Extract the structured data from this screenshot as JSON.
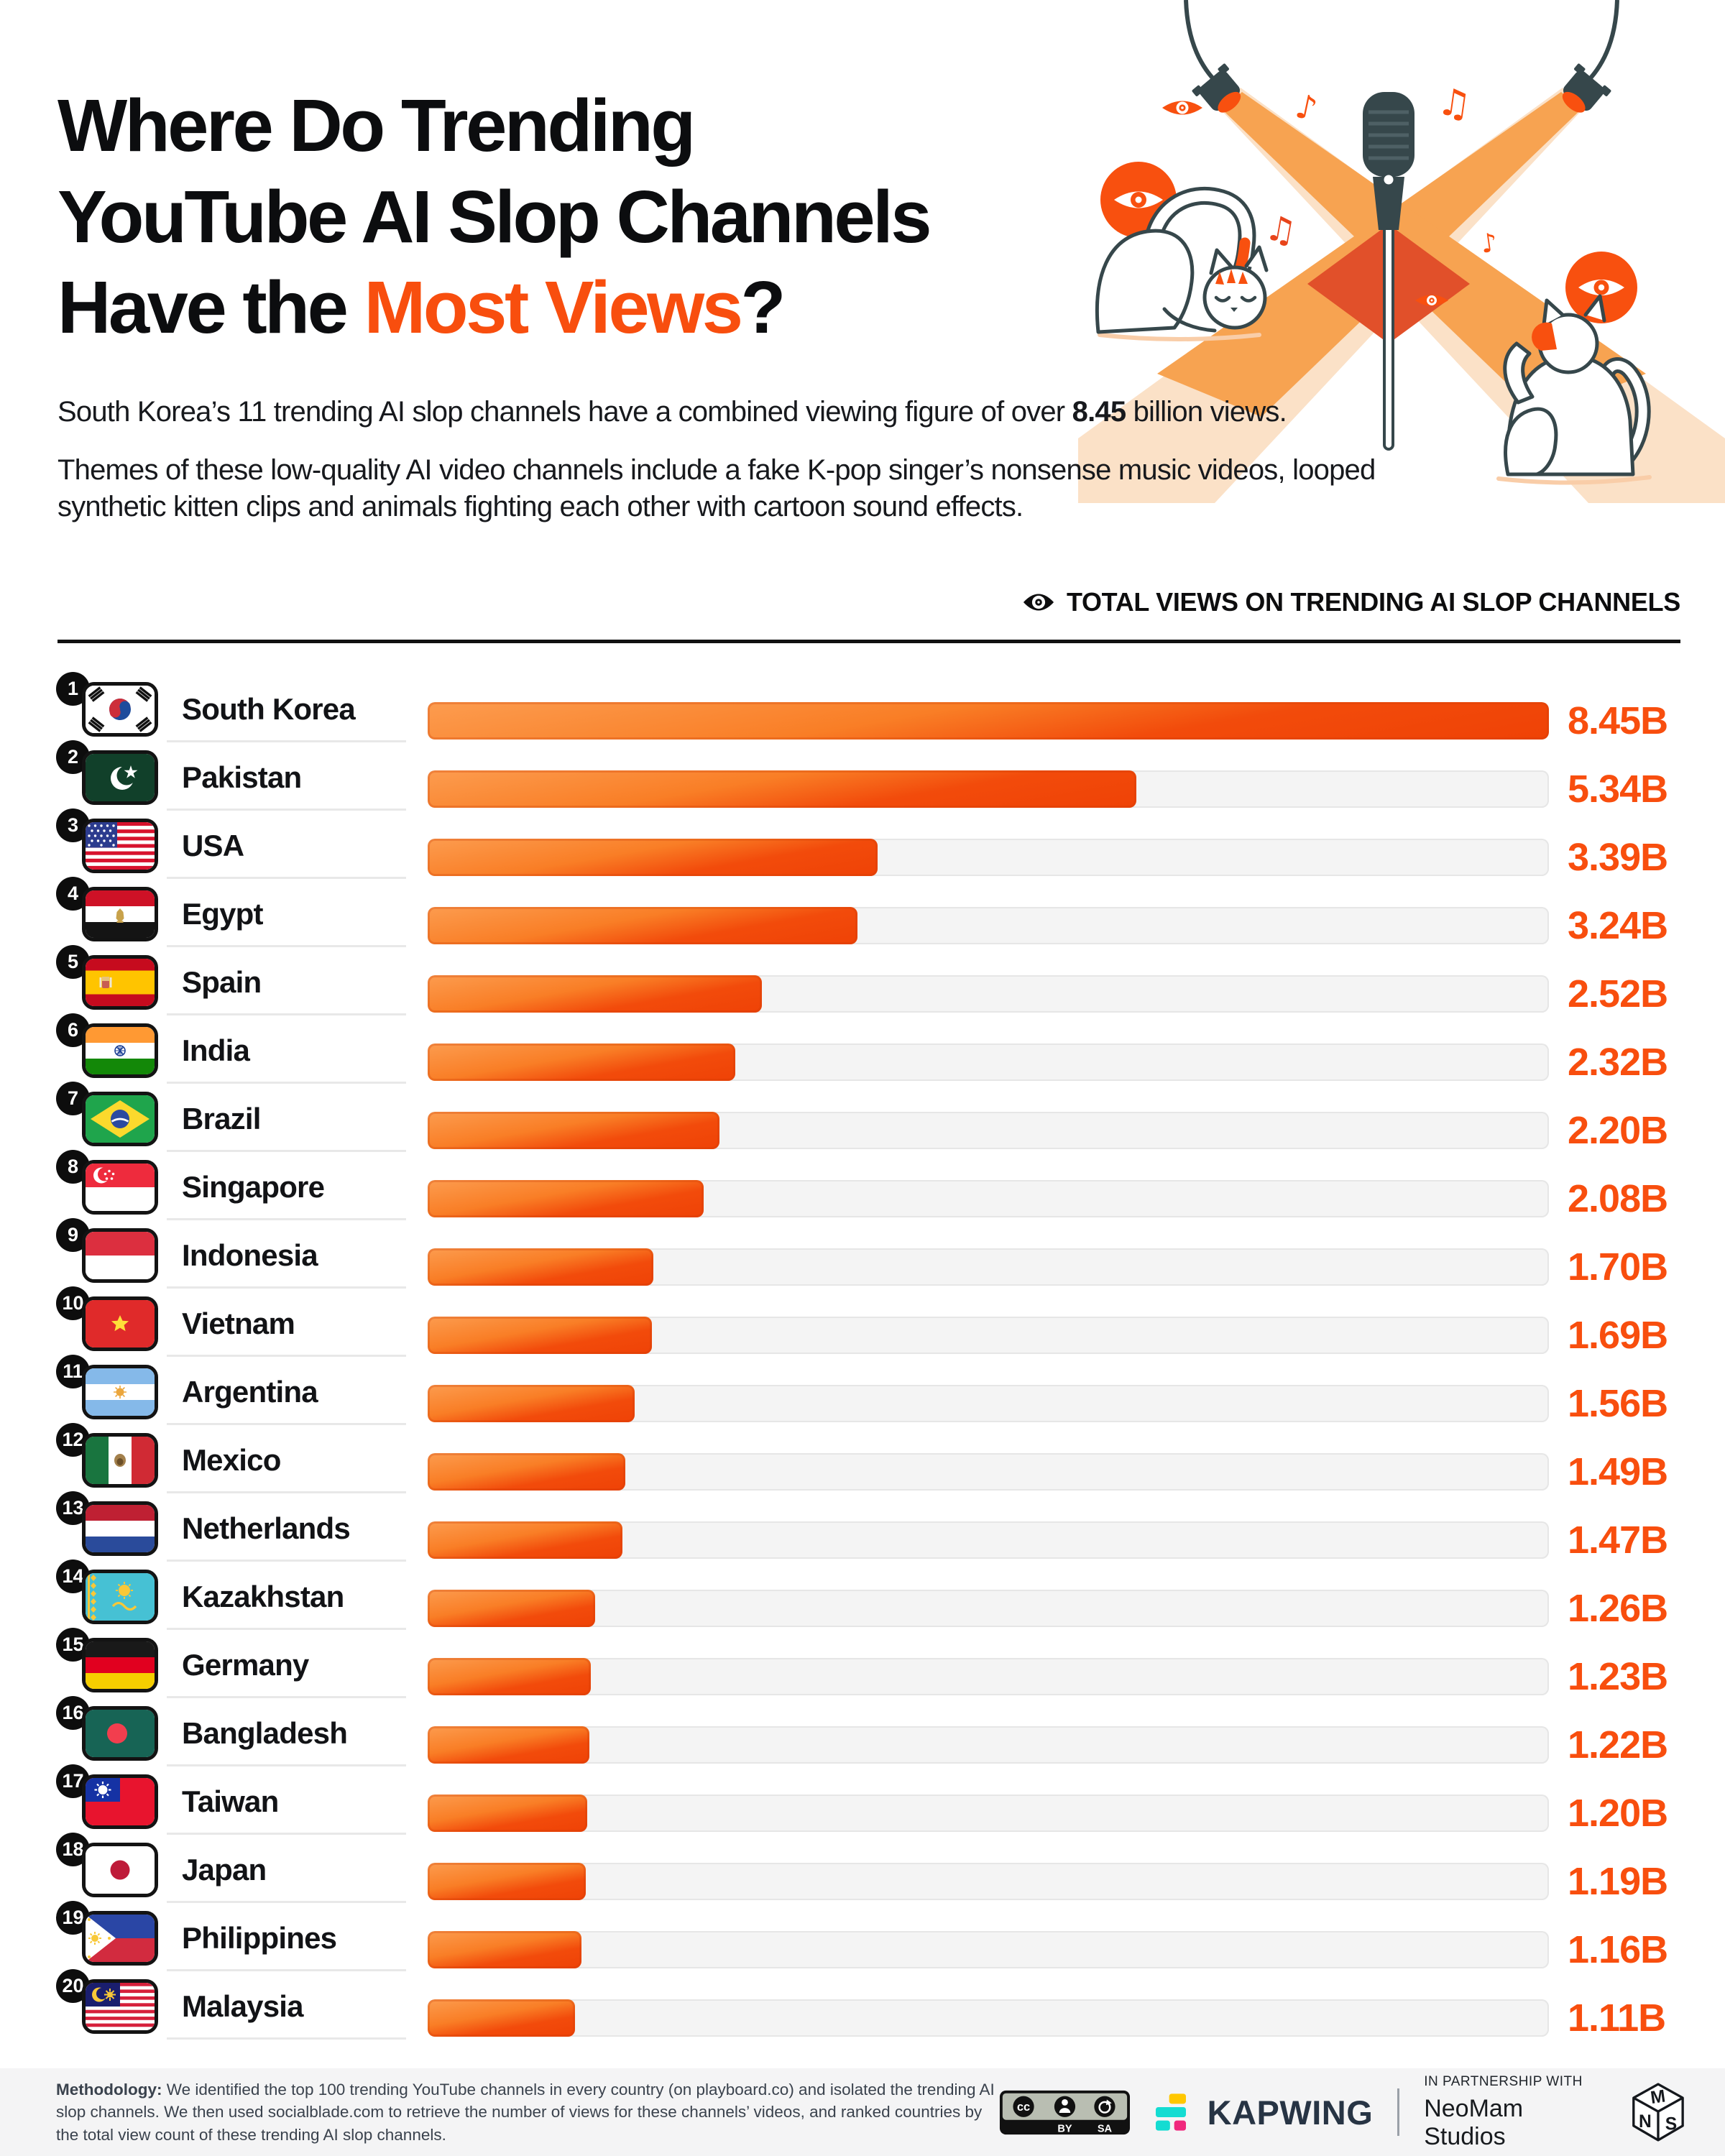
{
  "header": {
    "title_line1": "Where Do Trending",
    "title_line2": "YouTube AI Slop Channels",
    "title_line3_prefix": "Have the ",
    "title_line3_highlight": "Most Views",
    "title_line3_suffix": "?",
    "intro1_before": "South Korea’s 11 trending AI slop channels have a combined viewing figure of over ",
    "intro1_bold": "8.45",
    "intro1_after": " billion views.",
    "intro2": "Themes of these low-quality AI video channels include a fake K-pop singer’s nonsense music videos, looped synthetic kitten clips and animals fighting each other with cartoon sound effects."
  },
  "chart_data": {
    "type": "bar",
    "orientation": "horizontal",
    "title": "TOTAL VIEWS ON TRENDING AI SLOP CHANNELS",
    "unit": "billions of views",
    "value_suffix": "B",
    "xlim": [
      0,
      8.45
    ],
    "grid": false,
    "legend": false,
    "rows": [
      {
        "rank": 1,
        "country": "South Korea",
        "value": 8.45,
        "label": "8.45B",
        "flag": "south-korea"
      },
      {
        "rank": 2,
        "country": "Pakistan",
        "value": 5.34,
        "label": "5.34B",
        "flag": "pakistan"
      },
      {
        "rank": 3,
        "country": "USA",
        "value": 3.39,
        "label": "3.39B",
        "flag": "usa"
      },
      {
        "rank": 4,
        "country": "Egypt",
        "value": 3.24,
        "label": "3.24B",
        "flag": "egypt"
      },
      {
        "rank": 5,
        "country": "Spain",
        "value": 2.52,
        "label": "2.52B",
        "flag": "spain"
      },
      {
        "rank": 6,
        "country": "India",
        "value": 2.32,
        "label": "2.32B",
        "flag": "india"
      },
      {
        "rank": 7,
        "country": "Brazil",
        "value": 2.2,
        "label": "2.20B",
        "flag": "brazil"
      },
      {
        "rank": 8,
        "country": "Singapore",
        "value": 2.08,
        "label": "2.08B",
        "flag": "singapore"
      },
      {
        "rank": 9,
        "country": "Indonesia",
        "value": 1.7,
        "label": "1.70B",
        "flag": "indonesia"
      },
      {
        "rank": 10,
        "country": "Vietnam",
        "value": 1.69,
        "label": "1.69B",
        "flag": "vietnam"
      },
      {
        "rank": 11,
        "country": "Argentina",
        "value": 1.56,
        "label": "1.56B",
        "flag": "argentina"
      },
      {
        "rank": 12,
        "country": "Mexico",
        "value": 1.49,
        "label": "1.49B",
        "flag": "mexico"
      },
      {
        "rank": 13,
        "country": "Netherlands",
        "value": 1.47,
        "label": "1.47B",
        "flag": "netherlands"
      },
      {
        "rank": 14,
        "country": "Kazakhstan",
        "value": 1.26,
        "label": "1.26B",
        "flag": "kazakhstan"
      },
      {
        "rank": 15,
        "country": "Germany",
        "value": 1.23,
        "label": "1.23B",
        "flag": "germany"
      },
      {
        "rank": 16,
        "country": "Bangladesh",
        "value": 1.22,
        "label": "1.22B",
        "flag": "bangladesh"
      },
      {
        "rank": 17,
        "country": "Taiwan",
        "value": 1.2,
        "label": "1.20B",
        "flag": "taiwan"
      },
      {
        "rank": 18,
        "country": "Japan",
        "value": 1.19,
        "label": "1.19B",
        "flag": "japan"
      },
      {
        "rank": 19,
        "country": "Philippines",
        "value": 1.16,
        "label": "1.16B",
        "flag": "philippines"
      },
      {
        "rank": 20,
        "country": "Malaysia",
        "value": 1.11,
        "label": "1.11B",
        "flag": "malaysia"
      }
    ]
  },
  "footer": {
    "methodology_label": "Methodology:",
    "methodology_text": " We identified the top 100 trending YouTube channels in every country (on playboard.co) and isolated the trending AI slop channels. We then used socialblade.com to retrieve the number of views for these channels’ videos, and ranked countries by the total view count of these trending AI slop channels.",
    "license": {
      "cc": "cc",
      "by": "BY",
      "sa": "SA"
    },
    "kapwing": "KAPWING",
    "partnership_label": "IN PARTNERSHIP WITH",
    "partner_name": "NeoMam Studios",
    "monogram": {
      "m": "M",
      "n": "N",
      "s": "S"
    }
  },
  "colors": {
    "accent": "#F84E0E",
    "bar_gradient_top": "#FC9C4F",
    "bar_gradient_bottom": "#EF4206",
    "track": "#F4F4F4",
    "ink": "#0C0D0F",
    "footer_bg": "#F4F4F5",
    "illustration_dark": "#36474B",
    "beam_pale": "#FBE1C7",
    "beam_orange": "#F7A351",
    "beam_overlap": "#E1502A"
  }
}
